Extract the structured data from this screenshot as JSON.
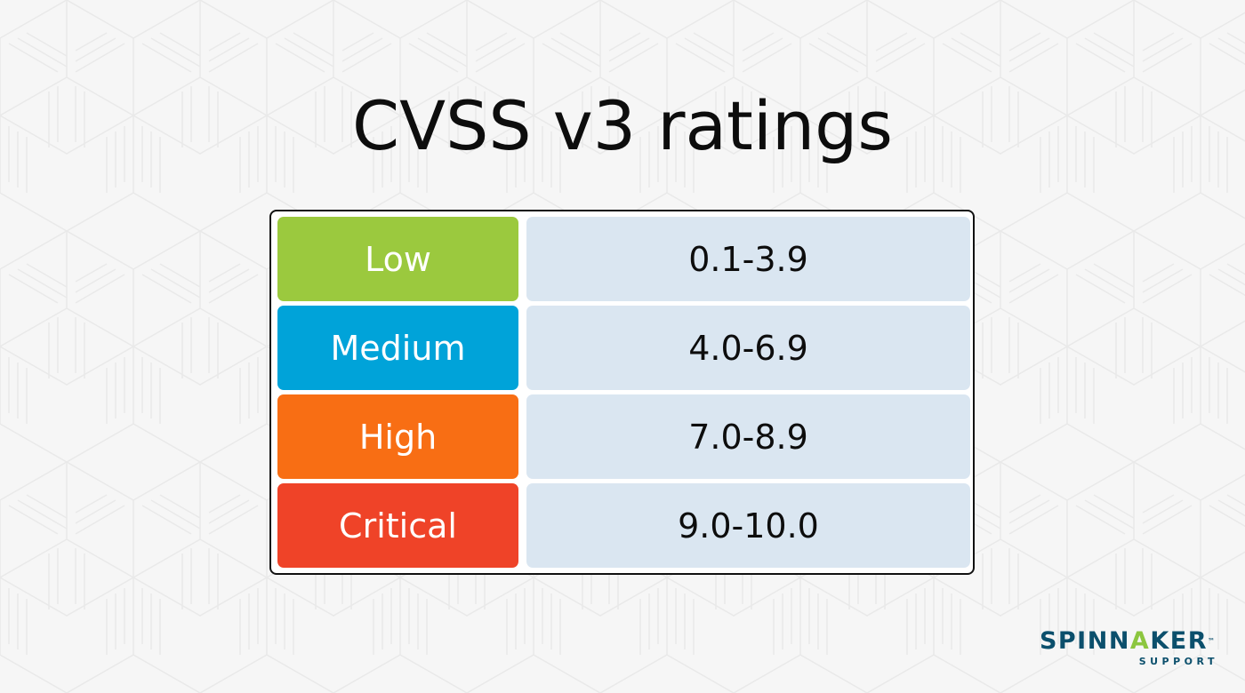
{
  "title": "CVSS v3 ratings",
  "ratings": [
    {
      "label": "Low",
      "range": "0.1-3.9",
      "color": "#9bc93e"
    },
    {
      "label": "Medium",
      "range": "4.0-6.9",
      "color": "#00a3d9"
    },
    {
      "label": "High",
      "range": "7.0-8.9",
      "color": "#f86e14"
    },
    {
      "label": "Critical",
      "range": "9.0-10.0",
      "color": "#ef4328"
    }
  ],
  "logo": {
    "brand_prefix": "SPINN",
    "brand_a": "A",
    "brand_suffix": "KER",
    "tm": "™",
    "subtitle": "SUPPORT",
    "brand_color": "#0b4f6c",
    "accent_color": "#8cc63f"
  }
}
